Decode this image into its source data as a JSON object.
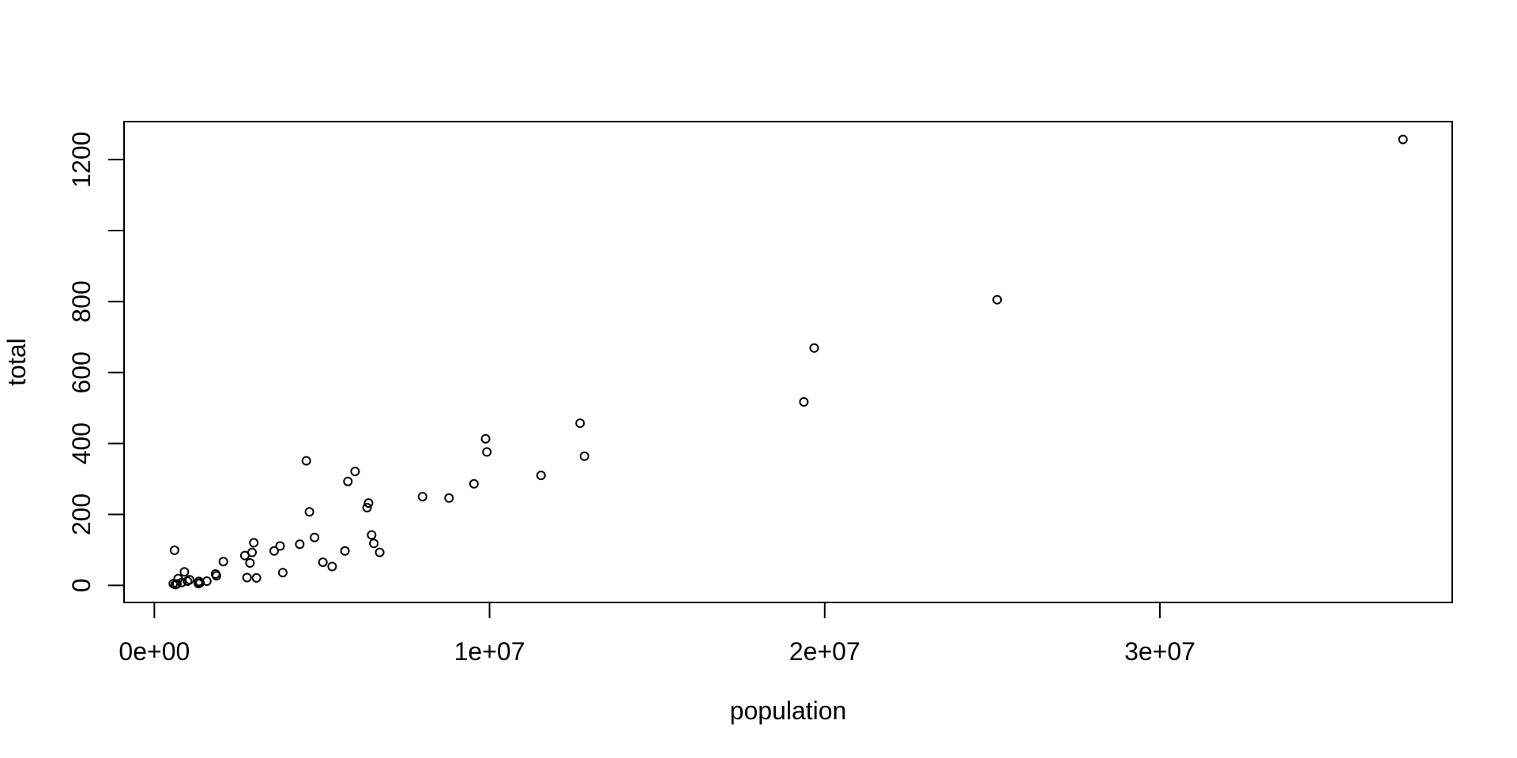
{
  "page": {
    "background_color": "#ffffff",
    "foreground_color": "#000000"
  },
  "chart_data": {
    "type": "scatter",
    "title": "",
    "xlabel": "population",
    "ylabel": "total",
    "grid": false,
    "legend": "none",
    "xlim": [
      -903987.2,
      38721569.2
    ],
    "ylim": [
      -48.2,
      1307.2
    ],
    "x_ticks": {
      "values": [
        0,
        10000000,
        20000000,
        30000000
      ],
      "labels": [
        "0e+00",
        "1e+07",
        "2e+07",
        "3e+07"
      ]
    },
    "y_ticks": {
      "values": [
        0,
        200,
        400,
        600,
        800,
        1000,
        1200
      ],
      "labels": [
        "0",
        "200",
        "400",
        "600",
        "800",
        "",
        "1200"
      ]
    },
    "marker": {
      "shape": "open-circle",
      "color": "#000000",
      "radius_px": 5,
      "stroke_px": 2
    },
    "x_values": [
      4779736,
      710231,
      6392017,
      2915918,
      37253956,
      5029196,
      3574097,
      897934,
      601723,
      19687653,
      9920000,
      1360301,
      1567582,
      12830632,
      6483802,
      3046355,
      2853118,
      4339367,
      4533372,
      1328361,
      5773552,
      6547629,
      9883640,
      5303925,
      2967297,
      5988927,
      989415,
      1826341,
      2700551,
      1316470,
      8791894,
      2059179,
      19378102,
      9535483,
      672591,
      11536504,
      3751351,
      3831074,
      12702379,
      1052567,
      4625364,
      814180,
      6346105,
      25145561,
      2763885,
      625741,
      8001024,
      6724540,
      1852994,
      5686986,
      563626
    ],
    "y_values": [
      135,
      19,
      232,
      93,
      1257,
      65,
      97,
      38,
      99,
      669,
      376,
      7,
      12,
      364,
      142,
      21,
      63,
      116,
      351,
      11,
      293,
      118,
      413,
      53,
      120,
      321,
      12,
      32,
      84,
      5,
      246,
      67,
      517,
      286,
      4,
      310,
      111,
      36,
      457,
      16,
      207,
      8,
      219,
      805,
      22,
      2,
      250,
      93,
      27,
      97,
      5
    ]
  }
}
